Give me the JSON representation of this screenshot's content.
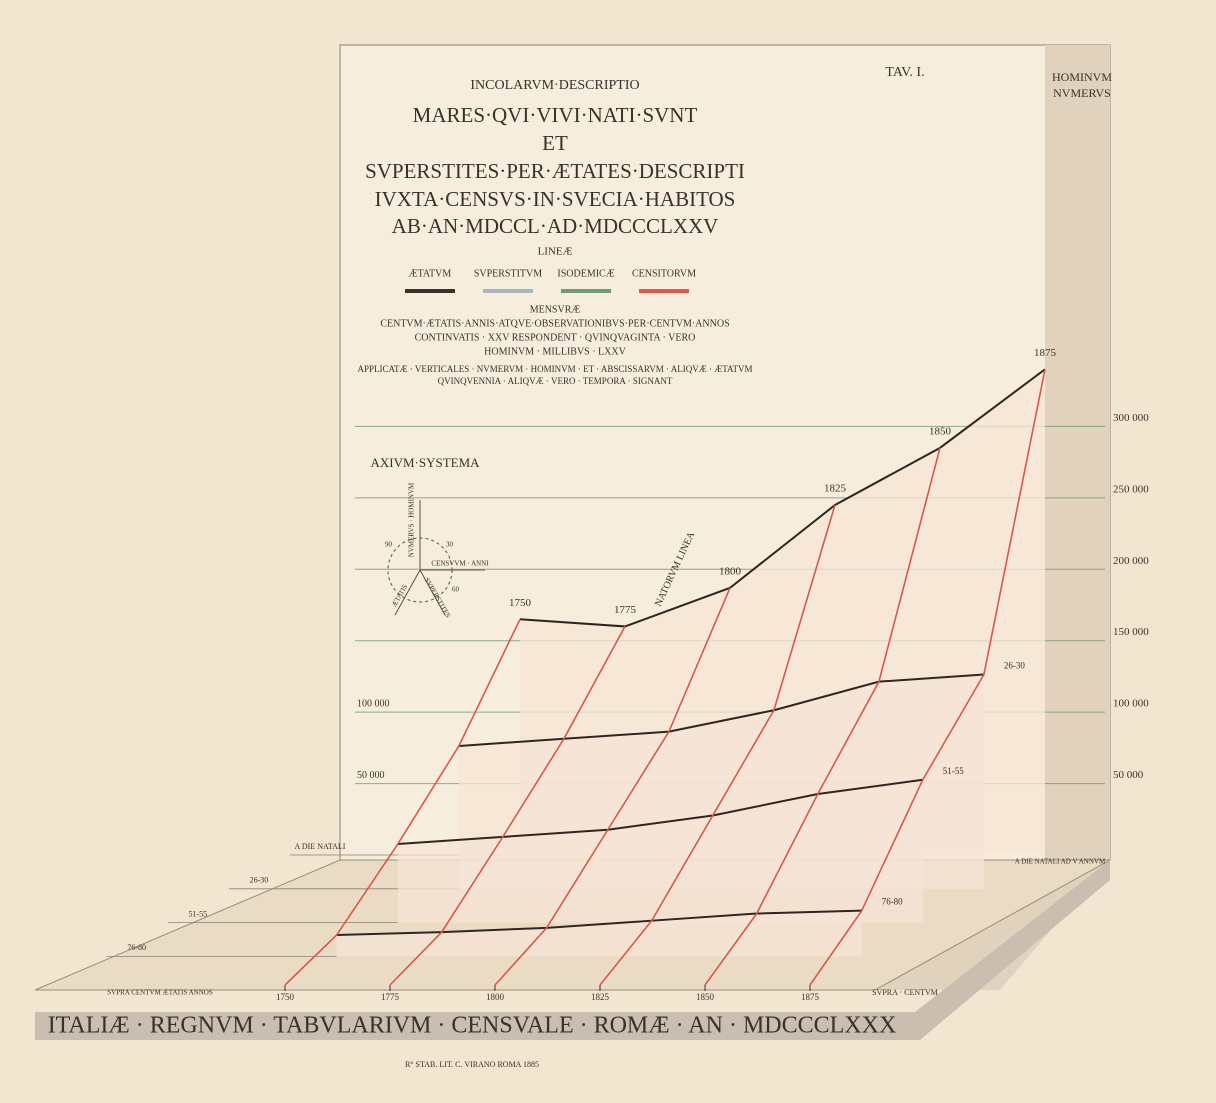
{
  "header": {
    "plate": "TAV. I.",
    "axis_title": [
      "HOMINVM",
      "NVMERVS"
    ],
    "lines": [
      "INCOLARVM·DESCRIPTIO",
      "MARES·QVI·VIVI·NATI·SVNT",
      "ET",
      "SVPERSTITES·PER·ÆTATES·DESCRIPTI",
      "IVXTA·CENSVS·IN·SVECIA·HABITOS",
      "AB·AN·MDCCL·AD·MDCCCLXXV"
    ],
    "legend_title": "LINEÆ",
    "legend": [
      {
        "name": "ÆTATVM",
        "color": "#3a302c"
      },
      {
        "name": "SVPERSTITVM",
        "color": "#a9b4c4"
      },
      {
        "name": "ISODEMICÆ",
        "color": "#6f9a73"
      },
      {
        "name": "CENSITORVM",
        "color": "#d9584a"
      }
    ],
    "mensurae_title": "MENSVRÆ",
    "mensurae": [
      "CENTVM·ÆTATIS·ANNIS·ATQVE·OBSERVATIONIBVS·PER·CENTVM·ANNOS",
      "CONTINVATIS · XXV RESPONDENT · QVINQVAGINTA · VERO",
      "HOMINVM · MILLIBVS · LXXV"
    ],
    "applicatae": [
      "APPLICATÆ · VERTICALES · NVMERVM · HOMINVM · ET · ABSCISSARVM · ALIQVÆ · ÆTATVM",
      "QVINQVENNIA · ALIQVÆ · VERO · TEMPORA · SIGNANT"
    ]
  },
  "axis_system": {
    "title": "AXIVM·SYSTEMA",
    "labels": [
      "NVMERVS · HOMINVM",
      "CENSVVM · ANNI",
      "SVPERSTITES",
      "ÆTATIS"
    ],
    "ticks": [
      30,
      60,
      90
    ]
  },
  "annotations": {
    "births_line": "NATORVM LINEA",
    "floor_back": "A DIE NATALI AD V ANNVM",
    "floor_front": "SVPRA CENTVM ÆTATIS ANNOS",
    "floor_front_right": "SVPRA · CENTVM"
  },
  "chart_data": {
    "type": "surface",
    "x": [
      1750,
      1775,
      1800,
      1825,
      1850,
      1875
    ],
    "xlim": [
      1750,
      1875
    ],
    "xticks": [
      1750,
      1775,
      1800,
      1825,
      1850,
      1875
    ],
    "ylim": [
      0,
      350000
    ],
    "yticks": [
      {
        "value": 50000,
        "label": "50 000"
      },
      {
        "value": 100000,
        "label": "100 000"
      },
      {
        "value": 150000,
        "label": "150 000"
      },
      {
        "value": 200000,
        "label": "200 000"
      },
      {
        "value": 250000,
        "label": "250 000"
      },
      {
        "value": 300000,
        "label": "300 000"
      }
    ],
    "series": [
      {
        "name": "A DIE NATALI",
        "color": "#2e2622",
        "values": [
          165000,
          160000,
          187000,
          245000,
          285000,
          340000
        ]
      },
      {
        "name": "26-30",
        "color": "#2e2622",
        "values": [
          100000,
          105000,
          110000,
          125000,
          145000,
          150000
        ]
      },
      {
        "name": "51-55",
        "color": "#2e2622",
        "values": [
          55000,
          60000,
          65000,
          75000,
          90000,
          100000
        ]
      },
      {
        "name": "76-80",
        "color": "#2e2622",
        "values": [
          15000,
          17000,
          20000,
          25000,
          30000,
          32000
        ]
      }
    ],
    "cohort_color": "#d9584a",
    "grid_color": "#6f9a73"
  },
  "footer": {
    "title": "ITALIÆ · REGNVM · TABVLARIVM · CENSVALE · ROMÆ · AN · MDCCCLXXX",
    "printer": "R° STAB. LIT. C. VIRANO ROMA 1885"
  }
}
